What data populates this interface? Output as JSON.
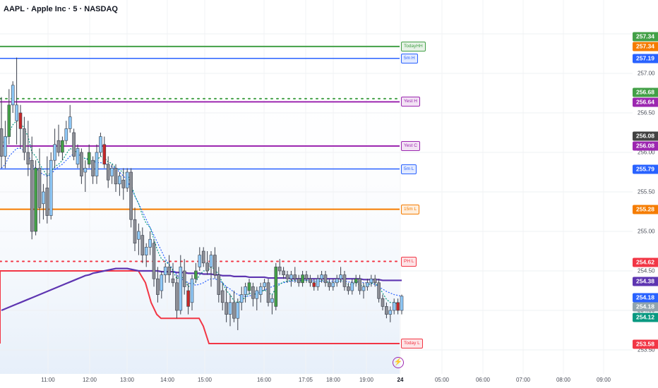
{
  "header": {
    "title": "AAPL · Apple Inc · 5 · NASDAQ"
  },
  "time_axis": {
    "labels": [
      "11:00",
      "12:00",
      "13:00",
      "14:00",
      "15:00",
      "16:00",
      "17:05",
      "18:00",
      "19:00",
      "24",
      "05:00",
      "06:00",
      "07:00",
      "08:00",
      "09:00"
    ],
    "bold_label": "24"
  },
  "price_axis": {
    "ticks": [
      "257.00",
      "256.50",
      "256.00",
      "255.50",
      "255.00",
      "254.50",
      "254.00",
      "253.50"
    ]
  },
  "badges": [
    {
      "text": "257.34",
      "color": "#43a047"
    },
    {
      "text": "257.34",
      "color": "#f57c00"
    },
    {
      "text": "257.19",
      "color": "#2962ff"
    },
    {
      "text": "256.68",
      "color": "#43a047"
    },
    {
      "text": "256.64",
      "color": "#9c27b0"
    },
    {
      "text": "256.08",
      "color": "#424242"
    },
    {
      "text": "256.08",
      "color": "#9c27b0"
    },
    {
      "text": "255.79",
      "color": "#2962ff"
    },
    {
      "text": "255.28",
      "color": "#f57c00"
    },
    {
      "text": "254.62",
      "color": "#f23645"
    },
    {
      "text": "254.38",
      "color": "#5e35b1"
    },
    {
      "text": "254.18",
      "color": "#2962ff"
    },
    {
      "text": "254.18",
      "color": "#90a4ae"
    },
    {
      "text": "254.12",
      "color": "#089981"
    },
    {
      "text": "253.58",
      "color": "#f23645"
    }
  ],
  "line_tags": [
    {
      "text": "TodayHH",
      "color": "#43a047"
    },
    {
      "text": "5m H",
      "color": "#2962ff"
    },
    {
      "text": "Yest H",
      "color": "#9c27b0"
    },
    {
      "text": "Yest C",
      "color": "#9c27b0"
    },
    {
      "text": "5m L",
      "color": "#2962ff"
    },
    {
      "text": "15m L",
      "color": "#f57c00"
    },
    {
      "text": "PH L",
      "color": "#f23645"
    },
    {
      "text": "Today L",
      "color": "#f23645"
    }
  ],
  "lightning_icon": "lightning-icon",
  "chart_data": {
    "type": "candlestick",
    "title": "AAPL · Apple Inc · 5 · NASDAQ",
    "ylim": [
      253.3,
      257.45
    ],
    "candles": [
      [
        256.3,
        256.7,
        255.8,
        255.95
      ],
      [
        255.95,
        256.4,
        255.8,
        256.2
      ],
      [
        256.2,
        256.8,
        256.1,
        256.6
      ],
      [
        256.6,
        256.9,
        256.5,
        256.85
      ],
      [
        256.4,
        257.2,
        256.1,
        256.6
      ],
      [
        256.5,
        256.6,
        256.05,
        256.3
      ],
      [
        256.3,
        256.45,
        255.9,
        256.0
      ],
      [
        256.0,
        256.4,
        255.7,
        255.85
      ],
      [
        255.9,
        256.2,
        254.9,
        255.0
      ],
      [
        255.0,
        255.9,
        254.95,
        255.8
      ],
      [
        255.8,
        256.05,
        255.1,
        255.3
      ],
      [
        255.35,
        255.6,
        255.15,
        255.5
      ],
      [
        255.55,
        255.95,
        255.1,
        255.2
      ],
      [
        255.2,
        256.0,
        255.15,
        255.9
      ],
      [
        255.9,
        256.3,
        255.8,
        256.1
      ],
      [
        256.15,
        256.35,
        255.95,
        256.0
      ],
      [
        256.0,
        256.2,
        255.9,
        256.15
      ],
      [
        256.15,
        256.4,
        256.1,
        256.3
      ],
      [
        256.3,
        256.6,
        256.25,
        256.45
      ],
      [
        256.25,
        256.3,
        255.9,
        255.95
      ],
      [
        255.85,
        256.1,
        255.8,
        256.05
      ],
      [
        256.0,
        256.05,
        255.6,
        255.7
      ],
      [
        255.75,
        255.9,
        255.5,
        255.8
      ],
      [
        255.85,
        256.1,
        255.8,
        256.0
      ],
      [
        255.9,
        255.95,
        255.6,
        255.7
      ],
      [
        255.7,
        256.1,
        255.6,
        256.0
      ],
      [
        256.0,
        256.25,
        255.95,
        256.2
      ],
      [
        256.1,
        256.2,
        255.8,
        255.85
      ],
      [
        255.85,
        255.95,
        255.55,
        255.65
      ],
      [
        255.7,
        255.85,
        255.6,
        255.8
      ],
      [
        255.8,
        255.85,
        255.5,
        255.6
      ],
      [
        255.6,
        255.75,
        255.45,
        255.7
      ],
      [
        255.65,
        255.8,
        255.4,
        255.55
      ],
      [
        255.55,
        255.8,
        255.5,
        255.75
      ],
      [
        255.75,
        255.8,
        255.05,
        255.15
      ],
      [
        255.15,
        255.3,
        254.75,
        254.85
      ],
      [
        254.9,
        255.1,
        254.7,
        255.0
      ],
      [
        254.95,
        255.05,
        254.6,
        254.7
      ],
      [
        254.7,
        254.85,
        254.55,
        254.8
      ],
      [
        254.8,
        255.0,
        254.7,
        254.9
      ],
      [
        254.85,
        254.9,
        254.3,
        254.4
      ],
      [
        254.4,
        254.55,
        254.1,
        254.2
      ],
      [
        254.25,
        254.5,
        254.15,
        254.45
      ],
      [
        254.45,
        254.6,
        254.35,
        254.55
      ],
      [
        254.55,
        254.7,
        254.35,
        254.45
      ],
      [
        254.4,
        254.6,
        254.3,
        254.35
      ],
      [
        254.35,
        254.45,
        253.9,
        254.0
      ],
      [
        254.0,
        254.7,
        253.95,
        254.55
      ],
      [
        254.5,
        254.65,
        254.2,
        254.3
      ],
      [
        254.25,
        254.35,
        253.95,
        254.05
      ],
      [
        254.1,
        254.45,
        254.0,
        254.4
      ],
      [
        254.4,
        254.6,
        254.35,
        254.5
      ],
      [
        254.55,
        254.8,
        254.5,
        254.7
      ],
      [
        254.75,
        254.8,
        254.55,
        254.6
      ],
      [
        254.6,
        254.75,
        254.45,
        254.5
      ],
      [
        254.55,
        254.75,
        254.3,
        254.7
      ],
      [
        254.7,
        254.8,
        254.4,
        254.45
      ],
      [
        254.45,
        254.55,
        254.1,
        254.2
      ],
      [
        254.25,
        254.35,
        254.0,
        254.1
      ],
      [
        254.1,
        254.3,
        253.85,
        253.95
      ],
      [
        253.95,
        254.2,
        253.8,
        254.1
      ],
      [
        254.1,
        254.25,
        253.85,
        253.9
      ],
      [
        253.9,
        254.15,
        253.75,
        254.1
      ],
      [
        254.1,
        254.3,
        254.0,
        254.2
      ],
      [
        254.2,
        254.35,
        254.1,
        254.3
      ],
      [
        254.25,
        254.4,
        254.2,
        254.35
      ],
      [
        254.3,
        254.35,
        254.05,
        254.15
      ],
      [
        254.15,
        254.3,
        254.0,
        254.25
      ],
      [
        254.2,
        254.35,
        254.1,
        254.3
      ],
      [
        254.3,
        254.4,
        254.25,
        254.35
      ],
      [
        254.35,
        254.4,
        254.05,
        254.1
      ],
      [
        254.1,
        254.2,
        253.95,
        254.15
      ],
      [
        254.05,
        254.6,
        254.0,
        254.55
      ],
      [
        254.55,
        254.65,
        254.45,
        254.5
      ],
      [
        254.5,
        254.55,
        254.4,
        254.45
      ],
      [
        254.45,
        254.5,
        254.35,
        254.4
      ],
      [
        254.4,
        254.5,
        254.3,
        254.45
      ],
      [
        254.45,
        254.55,
        254.35,
        254.4
      ],
      [
        254.4,
        254.45,
        254.3,
        254.35
      ],
      [
        254.35,
        254.5,
        254.3,
        254.45
      ],
      [
        254.45,
        254.5,
        254.35,
        254.4
      ],
      [
        254.4,
        254.45,
        254.3,
        254.35
      ],
      [
        254.35,
        254.4,
        254.25,
        254.3
      ],
      [
        254.3,
        254.45,
        254.25,
        254.4
      ],
      [
        254.4,
        254.5,
        254.35,
        254.45
      ],
      [
        254.45,
        254.5,
        254.3,
        254.35
      ],
      [
        254.35,
        254.4,
        254.25,
        254.3
      ],
      [
        254.3,
        254.4,
        254.25,
        254.35
      ],
      [
        254.35,
        254.45,
        254.3,
        254.4
      ],
      [
        254.4,
        254.55,
        254.35,
        254.45
      ],
      [
        254.45,
        254.5,
        254.25,
        254.3
      ],
      [
        254.3,
        254.35,
        254.2,
        254.25
      ],
      [
        254.25,
        254.4,
        254.2,
        254.35
      ],
      [
        254.35,
        254.45,
        254.3,
        254.4
      ],
      [
        254.4,
        254.45,
        254.2,
        254.25
      ],
      [
        254.25,
        254.35,
        254.15,
        254.3
      ],
      [
        254.3,
        254.4,
        254.25,
        254.35
      ],
      [
        254.35,
        254.45,
        254.3,
        254.4
      ],
      [
        254.4,
        254.45,
        254.3,
        254.35
      ],
      [
        254.35,
        254.4,
        254.1,
        254.15
      ],
      [
        254.15,
        254.2,
        254.0,
        254.05
      ],
      [
        254.05,
        254.1,
        253.9,
        253.95
      ],
      [
        253.95,
        254.05,
        253.85,
        254.0
      ],
      [
        254.0,
        254.15,
        253.95,
        254.1
      ],
      [
        254.1,
        254.15,
        253.95,
        254.0
      ],
      [
        254.0,
        254.2,
        253.95,
        254.18
      ]
    ],
    "vwap": [
      255.8,
      255.85,
      255.95,
      256.0,
      256.05,
      256.05,
      256.02,
      255.98,
      255.85,
      255.8,
      255.75,
      255.72,
      255.7,
      255.72,
      255.78,
      255.82,
      255.85,
      255.9,
      255.95,
      255.98,
      255.98,
      255.95,
      255.92,
      255.9,
      255.88,
      255.87,
      255.87,
      255.86,
      255.84,
      255.82,
      255.8,
      255.75,
      255.7,
      255.65,
      255.55,
      255.45,
      255.35,
      255.25,
      255.15,
      255.05,
      254.95,
      254.85,
      254.75,
      254.65,
      254.58,
      254.52,
      254.45,
      254.4,
      254.38,
      254.35,
      254.33,
      254.32,
      254.33,
      254.35,
      254.38,
      254.4,
      254.4,
      254.38,
      254.35,
      254.3,
      254.27,
      254.23,
      254.2,
      254.18,
      254.18,
      254.18,
      254.2,
      254.22,
      254.24,
      254.26,
      254.28,
      254.3,
      254.32,
      254.34,
      254.35,
      254.36,
      254.37,
      254.37,
      254.38,
      254.38,
      254.38,
      254.38,
      254.37,
      254.37,
      254.37,
      254.37,
      254.37,
      254.37,
      254.37,
      254.37,
      254.37,
      254.36,
      254.36,
      254.36,
      254.36,
      254.35,
      254.35,
      254.34,
      254.33,
      254.3,
      254.27,
      254.24,
      254.22,
      254.2,
      254.19,
      254.18
    ],
    "ema": [
      256.1,
      256.15,
      256.25,
      256.35,
      256.4,
      256.38,
      256.3,
      256.2,
      256.0,
      255.95,
      255.85,
      255.78,
      255.7,
      255.75,
      255.82,
      255.85,
      255.9,
      255.98,
      256.05,
      256.02,
      256.0,
      255.95,
      255.92,
      255.92,
      255.88,
      255.9,
      255.95,
      255.93,
      255.88,
      255.86,
      255.8,
      255.78,
      255.74,
      255.74,
      255.6,
      255.45,
      255.35,
      255.2,
      255.1,
      255.05,
      254.9,
      254.75,
      254.65,
      254.62,
      254.58,
      254.5,
      254.4,
      254.43,
      254.4,
      254.3,
      254.32,
      254.36,
      254.45,
      254.5,
      254.5,
      254.55,
      254.52,
      254.45,
      254.35,
      254.25,
      254.2,
      254.12,
      254.1,
      254.12,
      254.17,
      254.22,
      254.2,
      254.21,
      254.23,
      254.26,
      254.22,
      254.2,
      254.28,
      254.33,
      254.36,
      254.37,
      254.38,
      254.38,
      254.37,
      254.38,
      254.38,
      254.37,
      254.35,
      254.36,
      254.38,
      254.37,
      254.35,
      254.35,
      254.36,
      254.38,
      254.35,
      254.32,
      254.33,
      254.35,
      254.32,
      254.31,
      254.32,
      254.34,
      254.35,
      254.3,
      254.22,
      254.14,
      254.1,
      254.1,
      254.08,
      254.1
    ],
    "ma_purple": [
      254.0,
      254.02,
      254.04,
      254.06,
      254.08,
      254.1,
      254.12,
      254.14,
      254.16,
      254.18,
      254.2,
      254.22,
      254.24,
      254.26,
      254.28,
      254.3,
      254.32,
      254.34,
      254.36,
      254.38,
      254.4,
      254.42,
      254.44,
      254.45,
      254.47,
      254.48,
      254.49,
      254.5,
      254.51,
      254.52,
      254.53,
      254.53,
      254.53,
      254.53,
      254.52,
      254.51,
      254.5,
      254.5,
      254.5,
      254.5,
      254.5,
      254.5,
      254.49,
      254.49,
      254.49,
      254.49,
      254.48,
      254.48,
      254.48,
      254.47,
      254.47,
      254.47,
      254.47,
      254.46,
      254.46,
      254.46,
      254.45,
      254.45,
      254.44,
      254.44,
      254.44,
      254.43,
      254.43,
      254.43,
      254.43,
      254.42,
      254.42,
      254.42,
      254.42,
      254.42,
      254.41,
      254.41,
      254.41,
      254.41,
      254.41,
      254.41,
      254.4,
      254.4,
      254.4,
      254.4,
      254.4,
      254.4,
      254.4,
      254.4,
      254.4,
      254.4,
      254.4,
      254.4,
      254.4,
      254.4,
      254.4,
      254.4,
      254.4,
      254.4,
      254.4,
      254.39,
      254.39,
      254.39,
      254.39,
      254.39,
      254.38,
      254.38,
      254.38,
      254.38,
      254.38,
      254.38
    ],
    "levels": [
      {
        "price": 257.34,
        "color": "#43a047",
        "style": "solid",
        "width": 2
      },
      {
        "price": 257.19,
        "color": "#2962ff",
        "style": "solid",
        "width": 1.5
      },
      {
        "price": 256.68,
        "color": "#43a047",
        "style": "dotted",
        "width": 2
      },
      {
        "price": 256.64,
        "color": "#9c27b0",
        "style": "solid",
        "width": 2
      },
      {
        "price": 256.08,
        "color": "#9c27b0",
        "style": "solid",
        "width": 2
      },
      {
        "price": 255.79,
        "color": "#2962ff",
        "style": "solid",
        "width": 1.5
      },
      {
        "price": 255.28,
        "color": "#f57c00",
        "style": "solid",
        "width": 2
      },
      {
        "price": 254.62,
        "color": "#f23645",
        "style": "dotted",
        "width": 2
      }
    ]
  }
}
